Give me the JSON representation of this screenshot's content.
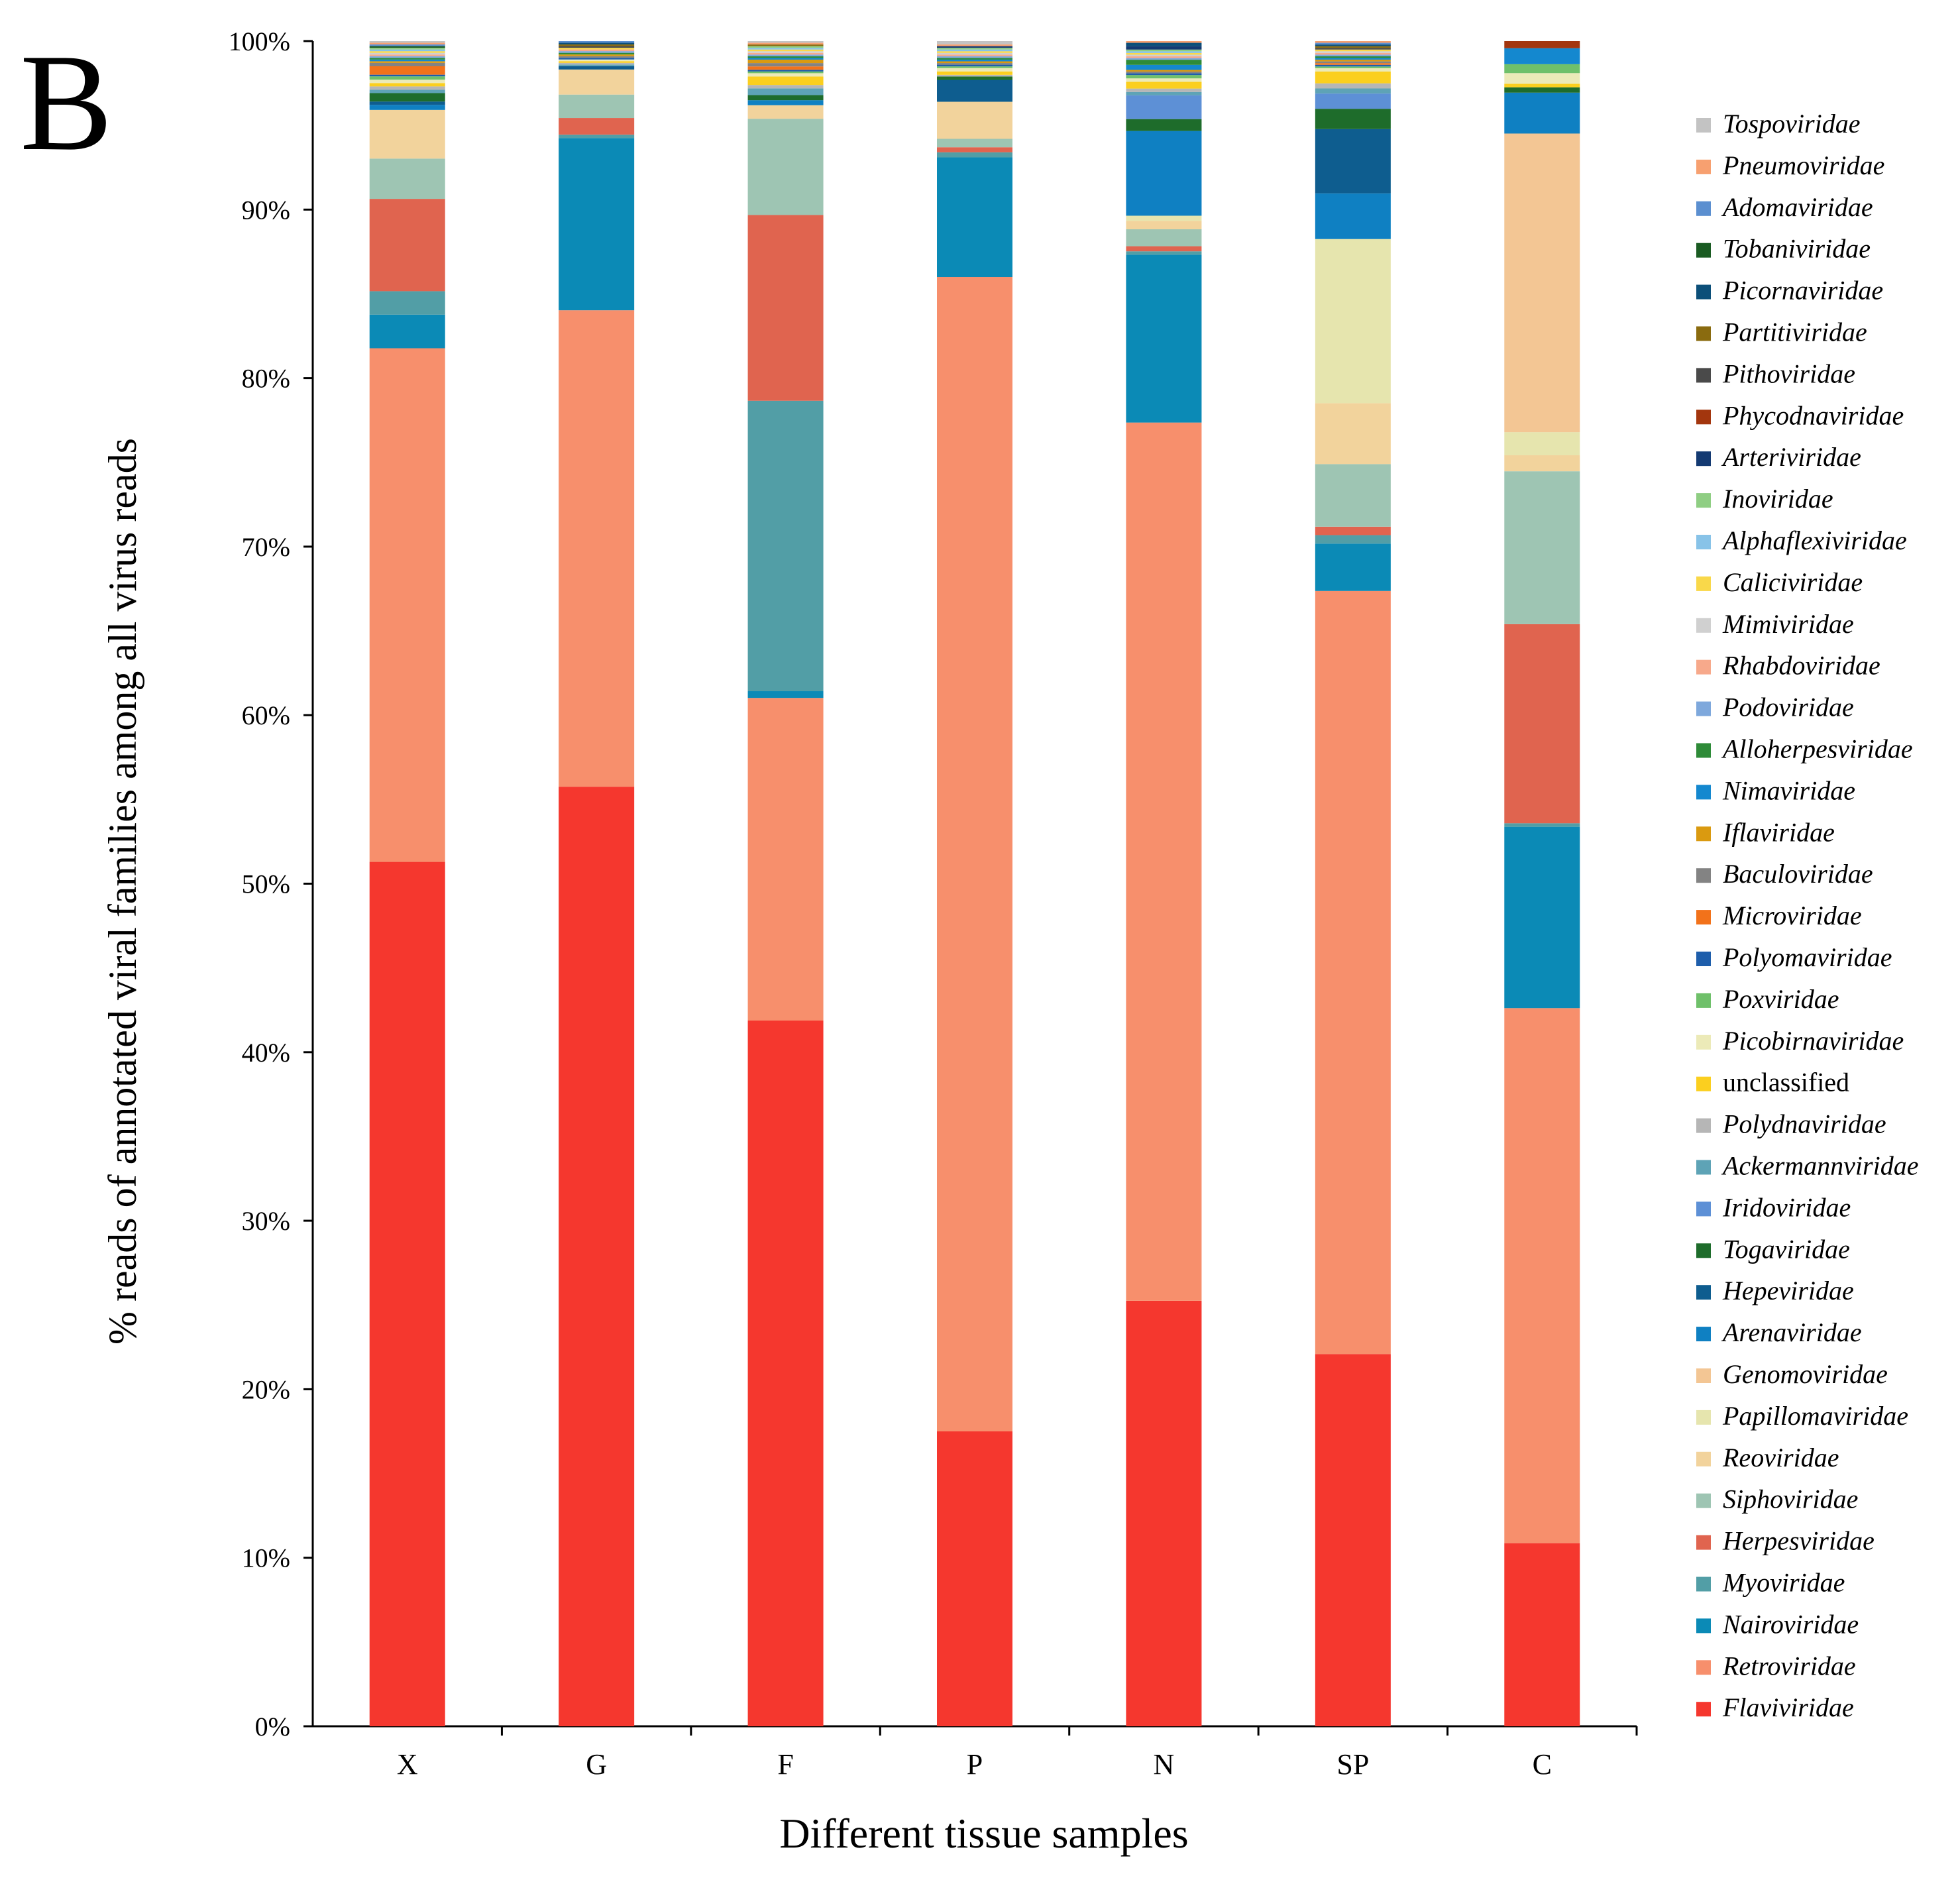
{
  "panel_label": "B",
  "chart_data": {
    "type": "bar",
    "stacked": true,
    "title": "",
    "xlabel": "Different tissue samples",
    "ylabel": "% reads of annotated viral families among all virus reads",
    "ylim": [
      0,
      100
    ],
    "yticks": [
      "0%",
      "10%",
      "20%",
      "30%",
      "40%",
      "50%",
      "60%",
      "70%",
      "80%",
      "90%",
      "100%"
    ],
    "categories": [
      "X",
      "G",
      "F",
      "P",
      "N",
      "SP",
      "C"
    ],
    "legend_position": "right",
    "series": [
      {
        "name": "Flaviviridae",
        "color": "#f5372e",
        "values": [
          51.5,
          56.2,
          41.8,
          17.5,
          25.1,
          22.0,
          10.3
        ]
      },
      {
        "name": "Retroviridae",
        "color": "#f78f6c",
        "values": [
          30.6,
          28.5,
          19.1,
          68.5,
          51.8,
          45.1,
          30.1
        ]
      },
      {
        "name": "Nairoviridae",
        "color": "#0b8ab6",
        "values": [
          2.0,
          10.3,
          0.4,
          7.1,
          9.9,
          2.8,
          10.2
        ]
      },
      {
        "name": "Myoviridae",
        "color": "#529ea6",
        "values": [
          1.4,
          0.2,
          17.2,
          0.3,
          0.2,
          0.5,
          0.2
        ]
      },
      {
        "name": "Herpesviridae",
        "color": "#e0644f",
        "values": [
          5.5,
          1.0,
          11.0,
          0.3,
          0.3,
          0.5,
          11.2
        ]
      },
      {
        "name": "Siphoviridae",
        "color": "#9ec5b3",
        "values": [
          2.4,
          1.4,
          5.7,
          0.5,
          1.0,
          3.7,
          8.6
        ]
      },
      {
        "name": "Reoviridae",
        "color": "#f2d39c",
        "values": [
          2.9,
          1.5,
          0.8,
          2.2,
          0.5,
          3.6,
          0.9
        ]
      },
      {
        "name": "Papillomaviridae",
        "color": "#e6e5ae",
        "values": [
          0,
          0,
          0,
          0,
          0.3,
          9.7,
          1.3
        ]
      },
      {
        "name": "Genomoviridae",
        "color": "#f3c694",
        "values": [
          0,
          0,
          0,
          0,
          0,
          0,
          16.8
        ]
      },
      {
        "name": "Arenaviridae",
        "color": "#0f80c2",
        "values": [
          0.3,
          0,
          0.3,
          0,
          5.0,
          2.7,
          2.3
        ]
      },
      {
        "name": "Hepeviridae",
        "color": "#0e5d8f",
        "values": [
          0.2,
          0.2,
          0,
          1.3,
          0,
          3.8,
          0
        ]
      },
      {
        "name": "Togaviridae",
        "color": "#1e6c2b",
        "values": [
          0.5,
          0,
          0.3,
          0.2,
          0.7,
          1.2,
          0.3
        ]
      },
      {
        "name": "Iridoviridae",
        "color": "#5d90d6",
        "values": [
          0,
          0,
          0,
          0,
          1.4,
          0.9,
          0
        ]
      },
      {
        "name": "Ackermannviridae",
        "color": "#5ea3b6",
        "values": [
          0.2,
          0.1,
          0.4,
          0,
          0.2,
          0.3,
          0
        ]
      },
      {
        "name": "Polydnaviridae",
        "color": "#b6b6b6",
        "values": [
          0.2,
          0.1,
          0.2,
          0.1,
          0.2,
          0.3,
          0
        ]
      },
      {
        "name": "unclassified",
        "color": "#fbcf1f",
        "values": [
          0.2,
          0.1,
          0.5,
          0.2,
          0.4,
          0.7,
          0.2
        ]
      },
      {
        "name": "Picobirnaviridae",
        "color": "#eceab8",
        "values": [
          0.2,
          0.1,
          0.2,
          0.2,
          0.2,
          0.2,
          0.6
        ]
      },
      {
        "name": "Poxviridae",
        "color": "#6fc06a",
        "values": [
          0.2,
          0,
          0.1,
          0.1,
          0.2,
          0.1,
          0.5
        ]
      },
      {
        "name": "Polyomaviridae",
        "color": "#1e5eab",
        "values": [
          0.1,
          0.1,
          0.1,
          0.1,
          0.1,
          0.1,
          0
        ]
      },
      {
        "name": "Microviridae",
        "color": "#f2721a",
        "values": [
          0.5,
          0,
          0.2,
          0,
          0,
          0.1,
          0
        ]
      },
      {
        "name": "Baculoviridae",
        "color": "#838383",
        "values": [
          0.2,
          0.1,
          0.2,
          0.1,
          0.1,
          0.1,
          0
        ]
      },
      {
        "name": "Iflaviridae",
        "color": "#da9a10",
        "values": [
          0.1,
          0.1,
          0.2,
          0.1,
          0.1,
          0.1,
          0
        ]
      },
      {
        "name": "Nimaviridae",
        "color": "#1488cf",
        "values": [
          0.1,
          0,
          0.1,
          0.1,
          0.3,
          0.1,
          0.9
        ]
      },
      {
        "name": "Alloherpesviridae",
        "color": "#2e8b38",
        "values": [
          0.1,
          0.1,
          0.1,
          0.1,
          0.3,
          0.1,
          0
        ]
      },
      {
        "name": "Podoviridae",
        "color": "#7ea8dc",
        "values": [
          0.1,
          0.1,
          0.1,
          0.1,
          0.1,
          0.1,
          0
        ]
      },
      {
        "name": "Rhabdoviridae",
        "color": "#f7a98b",
        "values": [
          0.1,
          0.1,
          0.1,
          0.1,
          0.1,
          0.1,
          0
        ]
      },
      {
        "name": "Mimiviridae",
        "color": "#d0d0d0",
        "values": [
          0.1,
          0,
          0.1,
          0.1,
          0.1,
          0.1,
          0
        ]
      },
      {
        "name": "Caliciviridae",
        "color": "#f9d84a",
        "values": [
          0.1,
          0.1,
          0.1,
          0.1,
          0.1,
          0.1,
          0
        ]
      },
      {
        "name": "Alphaflexiviridae",
        "color": "#88c3e8",
        "values": [
          0.1,
          0,
          0.1,
          0.1,
          0.1,
          0,
          0
        ]
      },
      {
        "name": "Inoviridae",
        "color": "#8fce83",
        "values": [
          0.1,
          0,
          0.1,
          0.1,
          0.1,
          0,
          0
        ]
      },
      {
        "name": "Arteriviridae",
        "color": "#143a72",
        "values": [
          0,
          0,
          0,
          0.1,
          0.2,
          0,
          0
        ]
      },
      {
        "name": "Phycodnaviridae",
        "color": "#a3360e",
        "values": [
          0,
          0,
          0,
          0,
          0,
          0,
          0.4
        ]
      },
      {
        "name": "Pithoviridae",
        "color": "#4a4a4a",
        "values": [
          0,
          0.1,
          0,
          0,
          0,
          0.1,
          0
        ]
      },
      {
        "name": "Partitiviridae",
        "color": "#8a6b0f",
        "values": [
          0,
          0.1,
          0.1,
          0,
          0,
          0.1,
          0
        ]
      },
      {
        "name": "Picornaviridae",
        "color": "#0c4f79",
        "values": [
          0,
          0.1,
          0,
          0,
          0.2,
          0.1,
          0
        ]
      },
      {
        "name": "Tobaniviridae",
        "color": "#1a5b22",
        "values": [
          0.1,
          0,
          0,
          0,
          0,
          0,
          0
        ]
      },
      {
        "name": "Adomaviridae",
        "color": "#5b8fd0",
        "values": [
          0.1,
          0.1,
          0,
          0,
          0,
          0.1,
          0
        ]
      },
      {
        "name": "Pneumoviridae",
        "color": "#f7a070",
        "values": [
          0.1,
          0,
          0.1,
          0.1,
          0.1,
          0.1,
          0
        ]
      },
      {
        "name": "Tospoviridae",
        "color": "#c3c3c3",
        "values": [
          0.1,
          0,
          0.1,
          0.2,
          0,
          0,
          0
        ]
      }
    ]
  }
}
